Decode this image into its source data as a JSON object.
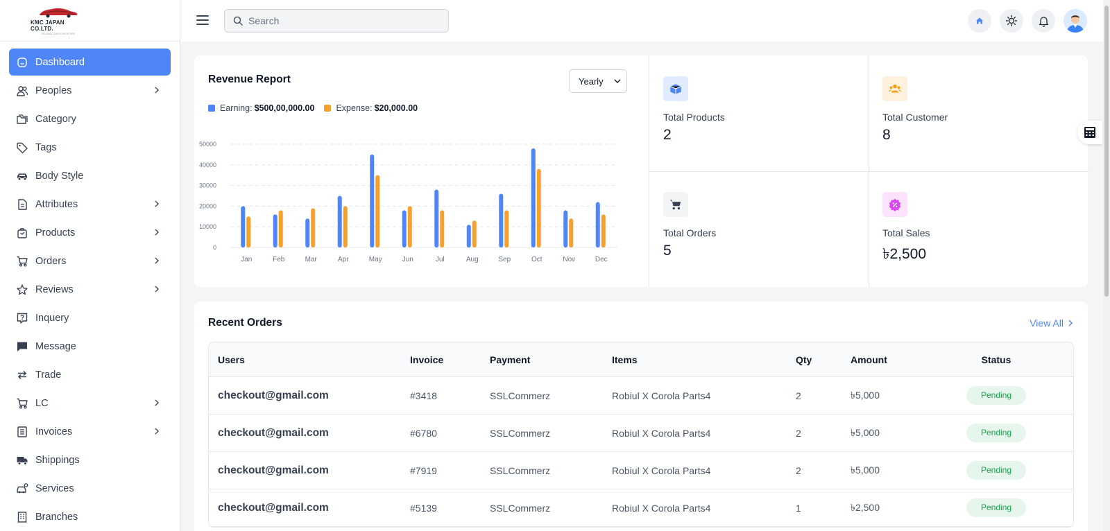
{
  "brand": {
    "name": "KMC JAPAN CO.LTD.",
    "tagline": "GLOBAL CAR EXPORTER"
  },
  "sidebar": {
    "items": [
      {
        "label": "Dashboard",
        "icon": "dashboard-icon",
        "active": true,
        "chevron": false
      },
      {
        "label": "Peoples",
        "icon": "people-icon",
        "chevron": true
      },
      {
        "label": "Category",
        "icon": "folder-icon",
        "chevron": false
      },
      {
        "label": "Tags",
        "icon": "tag-icon",
        "chevron": false
      },
      {
        "label": "Body Style",
        "icon": "car-icon",
        "chevron": false
      },
      {
        "label": "Attributes",
        "icon": "document-icon",
        "chevron": true
      },
      {
        "label": "Products",
        "icon": "bag-icon",
        "chevron": true
      },
      {
        "label": "Orders",
        "icon": "cart-icon",
        "chevron": true
      },
      {
        "label": "Reviews",
        "icon": "star-icon",
        "chevron": true
      },
      {
        "label": "Inquery",
        "icon": "question-icon",
        "chevron": false
      },
      {
        "label": "Message",
        "icon": "message-icon",
        "chevron": false
      },
      {
        "label": "Trade",
        "icon": "swap-icon",
        "chevron": false
      },
      {
        "label": "LC",
        "icon": "cart-icon",
        "chevron": true
      },
      {
        "label": "Invoices",
        "icon": "invoice-icon",
        "chevron": true
      },
      {
        "label": "Shippings",
        "icon": "truck-icon",
        "chevron": false
      },
      {
        "label": "Services",
        "icon": "car-service-icon",
        "chevron": false
      },
      {
        "label": "Branches",
        "icon": "building-icon",
        "chevron": false
      }
    ]
  },
  "header": {
    "search_placeholder": "Search"
  },
  "revenue": {
    "title": "Revenue Report",
    "period": "Yearly",
    "earning_label": "Earning:",
    "earning_value": "$500,00,000.00",
    "expense_label": "Expense:",
    "expense_value": "$20,000.00"
  },
  "chart_data": {
    "type": "bar",
    "categories": [
      "Jan",
      "Feb",
      "Mar",
      "Apr",
      "May",
      "Jun",
      "Jul",
      "Aug",
      "Sep",
      "Oct",
      "Nov",
      "Dec"
    ],
    "series": [
      {
        "name": "Earning",
        "color": "#4f86f7",
        "values": [
          20000,
          16000,
          14000,
          25000,
          45000,
          18000,
          28000,
          11000,
          26000,
          48000,
          18000,
          22000
        ]
      },
      {
        "name": "Expense",
        "color": "#f6a02d",
        "values": [
          15000,
          18000,
          19000,
          20000,
          35000,
          20000,
          18000,
          13000,
          18000,
          38000,
          14000,
          16000
        ]
      }
    ],
    "yticks": [
      "0",
      "10000",
      "20000",
      "30000",
      "40000",
      "50000"
    ],
    "ylim": [
      0,
      50000
    ],
    "grid": true
  },
  "stats": [
    {
      "label": "Total Products",
      "value": "2",
      "icon": "box-icon",
      "color": "#4f86f7",
      "bg": "#e0ebff"
    },
    {
      "label": "Total Customer",
      "value": "8",
      "icon": "users-icon",
      "color": "#f59e0b",
      "bg": "#fff1de"
    },
    {
      "label": "Total Orders",
      "value": "5",
      "icon": "cart-icon",
      "color": "#374151",
      "bg": "#f3f4f6"
    },
    {
      "label": "Total Sales",
      "value": "৳2,500",
      "icon": "discount-icon",
      "color": "#d946ef",
      "bg": "#fbe3fb"
    }
  ],
  "orders": {
    "title": "Recent Orders",
    "view_all": "View All",
    "columns": [
      "Users",
      "Invoice",
      "Payment",
      "Items",
      "Qty",
      "Amount",
      "Status"
    ],
    "rows": [
      {
        "user": "checkout@gmail.com",
        "invoice": "#3418",
        "payment": "SSLCommerz",
        "items": "Robiul X Corola Parts4",
        "qty": "2",
        "amount": "৳5,000",
        "status": "Pending"
      },
      {
        "user": "checkout@gmail.com",
        "invoice": "#6780",
        "payment": "SSLCommerz",
        "items": "Robiul X Corola Parts4",
        "qty": "2",
        "amount": "৳5,000",
        "status": "Pending"
      },
      {
        "user": "checkout@gmail.com",
        "invoice": "#7919",
        "payment": "SSLCommerz",
        "items": "Robiul X Corola Parts4",
        "qty": "2",
        "amount": "৳5,000",
        "status": "Pending"
      },
      {
        "user": "checkout@gmail.com",
        "invoice": "#5139",
        "payment": "SSLCommerz",
        "items": "Robiul X Corola Parts4",
        "qty": "1",
        "amount": "৳2,500",
        "status": "Pending"
      }
    ]
  }
}
